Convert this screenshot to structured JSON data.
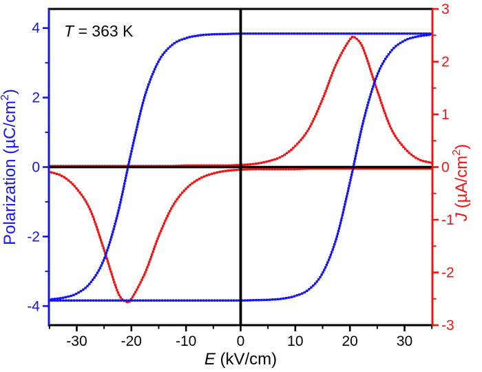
{
  "figure": {
    "background": "#ffffff"
  },
  "annotation": {
    "italic": "T",
    "rest": " = 363 K",
    "color": "#000000"
  },
  "axes": {
    "x": {
      "label_italic": "E",
      "label_rest": " (kV/cm)",
      "color": "#000000",
      "range": [
        -35.1,
        35.1
      ],
      "major_ticks": [
        -30,
        -20,
        -10,
        0,
        10,
        20,
        30
      ],
      "tick_labels": [
        "-30",
        "-20",
        "-10",
        "0",
        "10",
        "20",
        "30"
      ],
      "minor_ticks": [
        -35,
        -25,
        -15,
        -5,
        5,
        15,
        25,
        35
      ]
    },
    "y_left": {
      "label_pre": "Polarization (µC/cm",
      "label_sup": "2",
      "label_post": ")",
      "color": "#1414f0",
      "range": [
        -4.55,
        4.55
      ],
      "major_ticks": [
        -4,
        -2,
        0,
        2,
        4
      ],
      "tick_labels": [
        "-4",
        "-2",
        "0",
        "2",
        "4"
      ],
      "minor_ticks": [
        -3,
        -1,
        1,
        3
      ]
    },
    "y_right": {
      "label_italic": "J",
      "label_pre": " (µA/cm",
      "label_sup": "2",
      "label_post": ")",
      "color": "#f01414",
      "range": [
        -3,
        3
      ],
      "major_ticks": [
        -3,
        -2,
        -1,
        0,
        1,
        2,
        3
      ],
      "tick_labels": [
        "-3",
        "-2",
        "-1",
        "0",
        "1",
        "2",
        "3"
      ],
      "minor_ticks": [
        -2.5,
        -1.5,
        -0.5,
        0.5,
        1.5,
        2.5
      ]
    }
  },
  "reference_lines": {
    "vertical_x": 0,
    "horizontal_y": 0,
    "color": "#000000"
  },
  "chart_data": {
    "type": "line",
    "title": "",
    "xlabel": "E (kV/cm)",
    "ylabel_left": "Polarization (µC/cm2)",
    "ylabel_right": "J (µA/cm2)",
    "xlim": [
      -35,
      35
    ],
    "ylim_left": [
      -4.55,
      4.55
    ],
    "ylim_right": [
      -3,
      3
    ],
    "grid": false,
    "legend": "none",
    "series": [
      {
        "name": "polarization-increasing-branch",
        "axis": "left",
        "color": "#1414f0",
        "points": [
          [
            -35,
            -3.84
          ],
          [
            -32.5,
            -3.84
          ],
          [
            -30,
            -3.84
          ],
          [
            -27.5,
            -3.84
          ],
          [
            -25,
            -3.84
          ],
          [
            -22.5,
            -3.84
          ],
          [
            -20,
            -3.84
          ],
          [
            -17.5,
            -3.84
          ],
          [
            -15,
            -3.84
          ],
          [
            -12.5,
            -3.84
          ],
          [
            -10,
            -3.84
          ],
          [
            -7.5,
            -3.84
          ],
          [
            -5,
            -3.84
          ],
          [
            -2.5,
            -3.84
          ],
          [
            0,
            -3.84
          ],
          [
            2.5,
            -3.83
          ],
          [
            5,
            -3.82
          ],
          [
            7.5,
            -3.79
          ],
          [
            10,
            -3.71
          ],
          [
            12.5,
            -3.52
          ],
          [
            15,
            -3.05
          ],
          [
            17.5,
            -2.06
          ],
          [
            20,
            -0.44
          ],
          [
            22.5,
            1.34
          ],
          [
            25,
            2.65
          ],
          [
            27.5,
            3.33
          ],
          [
            30,
            3.64
          ],
          [
            32.5,
            3.76
          ],
          [
            35,
            3.81
          ]
        ]
      },
      {
        "name": "polarization-decreasing-branch",
        "axis": "left",
        "color": "#1414f0",
        "points": [
          [
            35,
            3.84
          ],
          [
            32.5,
            3.84
          ],
          [
            30,
            3.84
          ],
          [
            27.5,
            3.84
          ],
          [
            25,
            3.84
          ],
          [
            22.5,
            3.84
          ],
          [
            20,
            3.84
          ],
          [
            17.5,
            3.84
          ],
          [
            15,
            3.84
          ],
          [
            12.5,
            3.84
          ],
          [
            10,
            3.84
          ],
          [
            7.5,
            3.84
          ],
          [
            5,
            3.84
          ],
          [
            2.5,
            3.84
          ],
          [
            0,
            3.84
          ],
          [
            -2.5,
            3.83
          ],
          [
            -5,
            3.82
          ],
          [
            -7.5,
            3.79
          ],
          [
            -10,
            3.71
          ],
          [
            -12.5,
            3.52
          ],
          [
            -15,
            3.05
          ],
          [
            -17.5,
            2.06
          ],
          [
            -20,
            0.44
          ],
          [
            -22.5,
            -1.34
          ],
          [
            -25,
            -2.65
          ],
          [
            -27.5,
            -3.33
          ],
          [
            -30,
            -3.64
          ],
          [
            -32.5,
            -3.76
          ],
          [
            -35,
            -3.81
          ]
        ]
      },
      {
        "name": "current-density-increasing-branch",
        "axis": "right",
        "color": "#f01414",
        "points": [
          [
            -35,
            0.02
          ],
          [
            -32.5,
            0.02
          ],
          [
            -30,
            0.02
          ],
          [
            -27.5,
            0.02
          ],
          [
            -25,
            0.02
          ],
          [
            -22.5,
            0.02
          ],
          [
            -20,
            0.02
          ],
          [
            -17.5,
            0.02
          ],
          [
            -15,
            0.02
          ],
          [
            -12.5,
            0.02
          ],
          [
            -10,
            0.03
          ],
          [
            -7.5,
            0.03
          ],
          [
            -5,
            0.03
          ],
          [
            -2.5,
            0.03
          ],
          [
            0,
            0.04
          ],
          [
            2.5,
            0.06
          ],
          [
            5,
            0.11
          ],
          [
            7.5,
            0.2
          ],
          [
            10,
            0.4
          ],
          [
            12.5,
            0.73
          ],
          [
            15,
            1.29
          ],
          [
            17.5,
            1.96
          ],
          [
            20,
            2.42
          ],
          [
            21,
            2.45
          ],
          [
            22.5,
            2.23
          ],
          [
            25,
            1.45
          ],
          [
            27.5,
            0.74
          ],
          [
            30,
            0.36
          ],
          [
            32.5,
            0.15
          ],
          [
            35,
            0.08
          ]
        ]
      },
      {
        "name": "current-density-decreasing-branch",
        "axis": "right",
        "color": "#f01414",
        "points": [
          [
            35,
            -0.03
          ],
          [
            32.5,
            -0.03
          ],
          [
            30,
            -0.03
          ],
          [
            27.5,
            -0.03
          ],
          [
            25,
            -0.03
          ],
          [
            22.5,
            -0.03
          ],
          [
            20,
            -0.03
          ],
          [
            17.5,
            -0.03
          ],
          [
            15,
            -0.03
          ],
          [
            12.5,
            -0.03
          ],
          [
            10,
            -0.04
          ],
          [
            7.5,
            -0.04
          ],
          [
            5,
            -0.04
          ],
          [
            2.5,
            -0.04
          ],
          [
            0,
            -0.05
          ],
          [
            -2.5,
            -0.07
          ],
          [
            -5,
            -0.12
          ],
          [
            -7.5,
            -0.22
          ],
          [
            -10,
            -0.41
          ],
          [
            -12.5,
            -0.75
          ],
          [
            -15,
            -1.31
          ],
          [
            -17.5,
            -2.01
          ],
          [
            -20,
            -2.5
          ],
          [
            -21,
            -2.55
          ],
          [
            -22.5,
            -2.37
          ],
          [
            -25,
            -1.57
          ],
          [
            -27.5,
            -0.82
          ],
          [
            -30,
            -0.41
          ],
          [
            -32.5,
            -0.18
          ],
          [
            -35,
            -0.09
          ]
        ]
      }
    ]
  }
}
